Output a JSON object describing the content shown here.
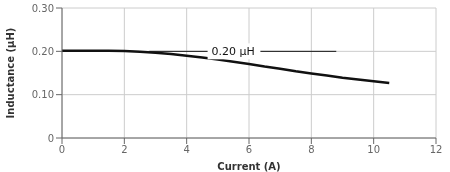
{
  "chart_data": {
    "type": "line",
    "xlabel": "Current (A)",
    "ylabel": "Inductance (μH)",
    "x": [
      0,
      0.3,
      0.6,
      1.0,
      1.5,
      2.0,
      2.5,
      3.0,
      3.5,
      4.0,
      4.5,
      5.0,
      5.5,
      6.0,
      6.5,
      7.0,
      7.5,
      8.0,
      8.5,
      9.0,
      9.5,
      10.0,
      10.5
    ],
    "values": [
      0.2015,
      0.2015,
      0.2015,
      0.2015,
      0.2012,
      0.2005,
      0.199,
      0.197,
      0.194,
      0.19,
      0.186,
      0.181,
      0.176,
      0.171,
      0.165,
      0.16,
      0.154,
      0.149,
      0.144,
      0.139,
      0.135,
      0.131,
      0.127
    ],
    "color": "#111111",
    "xlim": [
      0,
      12
    ],
    "ylim": [
      0,
      0.3
    ],
    "xticks": [
      0,
      2,
      4,
      6,
      8,
      10,
      12
    ],
    "yticks": [
      0,
      {
        "value": 0.1,
        "label": "0.10"
      },
      {
        "value": 0.2,
        "label": "0.20"
      },
      {
        "value": 0.3,
        "label": "0.30"
      }
    ],
    "grid": true,
    "annotations": [
      {
        "text": "0.20 μH",
        "x": 4.8,
        "y": 0.2,
        "line_x": [
          2.8,
          8.8
        ]
      }
    ]
  }
}
